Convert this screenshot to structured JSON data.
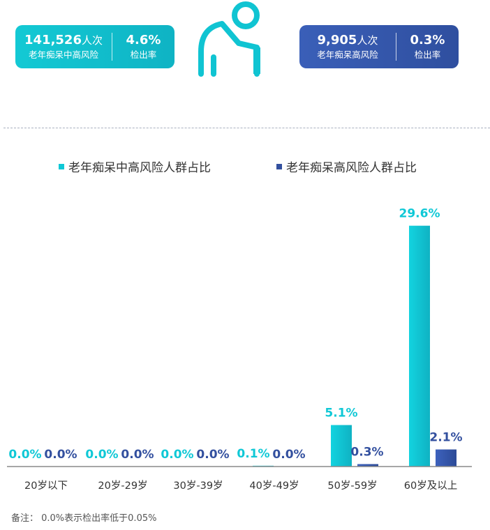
{
  "summary": {
    "mid_high": {
      "count": "141,526",
      "unit": "人次",
      "label": "老年痴呆中高风险",
      "rate": "4.6%",
      "rate_label": "检出率"
    },
    "high": {
      "count": "9,905",
      "unit": "人次",
      "label": "老年痴呆高风险",
      "rate": "0.3%",
      "rate_label": "检出率"
    }
  },
  "colors": {
    "teal": "#0fc8d6",
    "blue": "#33509f",
    "axis": "#888888"
  },
  "icons": {
    "person": "elderly-person-icon"
  },
  "note": "备注： 0.0%表示检出率低于0.05%",
  "chart_data": {
    "type": "bar",
    "categories": [
      "20岁以下",
      "20岁-29岁",
      "30岁-39岁",
      "40岁-49岁",
      "50岁-59岁",
      "60岁及以上"
    ],
    "series": [
      {
        "name": "老年痴呆中高风险人群占比",
        "values": [
          0.0,
          0.0,
          0.0,
          0.1,
          5.1,
          29.6
        ],
        "labels": [
          "0.0%",
          "0.0%",
          "0.0%",
          "0.1%",
          "5.1%",
          "29.6%"
        ]
      },
      {
        "name": "老年痴呆高风险人群占比",
        "values": [
          0.0,
          0.0,
          0.0,
          0.0,
          0.3,
          2.1
        ],
        "labels": [
          "0.0%",
          "0.0%",
          "0.0%",
          "0.0%",
          "0.3%",
          "2.1%"
        ]
      }
    ],
    "ylim": [
      0,
      30
    ],
    "unit": "%",
    "legend": "top",
    "grid": false
  }
}
